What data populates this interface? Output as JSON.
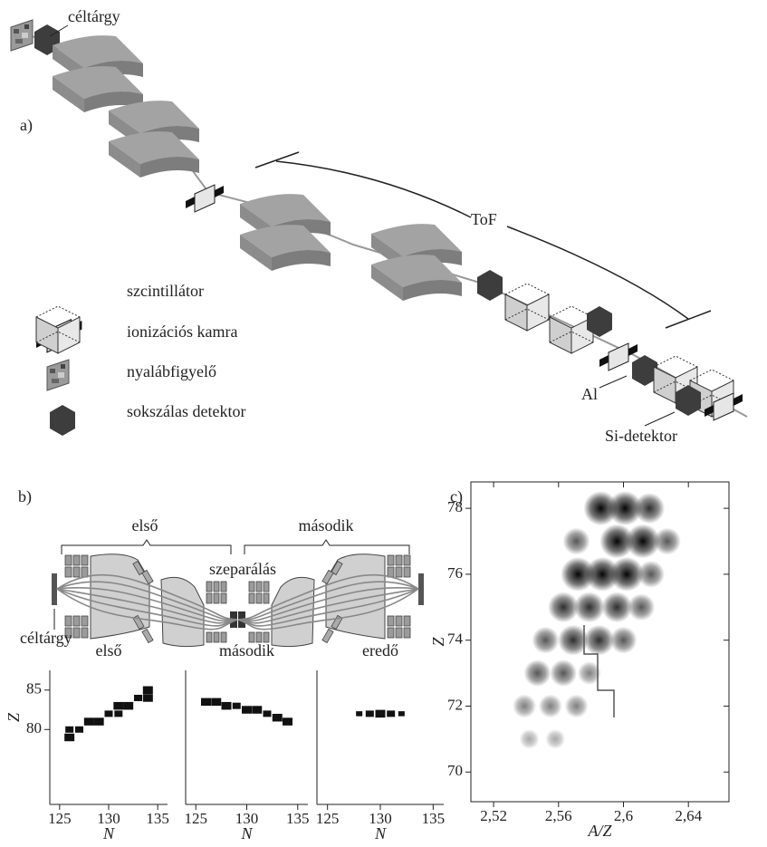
{
  "panel_a": {
    "label": "a)",
    "target": "céltárgy",
    "tof": "ToF",
    "al": "Al",
    "si": "Si-detektor",
    "legend": [
      "szcintillátor",
      "ionizációs kamra",
      "nyalábfigyelő",
      "sokszálas detektor"
    ]
  },
  "panel_b": {
    "label": "b)",
    "first": "első",
    "second": "második",
    "separation": "szeparálás",
    "target": "céltárgy"
  },
  "panel_c": {
    "label": "c)"
  },
  "chart_data": [
    {
      "type": "scatter",
      "marker": "square",
      "title": "első",
      "xlabel": "N",
      "ylabel": "Z",
      "x": [
        126,
        126,
        127,
        128,
        129,
        130,
        131,
        131,
        132,
        133,
        134,
        134
      ],
      "y": [
        79,
        80,
        80,
        81,
        81,
        82,
        82,
        83,
        83,
        84,
        84,
        85
      ],
      "sizes": [
        3,
        2,
        2,
        3,
        3,
        2,
        2,
        3,
        3,
        2,
        3,
        3
      ],
      "color": "#111111",
      "xlim": [
        124,
        136
      ],
      "xticks": [
        125,
        130,
        135
      ],
      "ylim": [
        70.5,
        87.5
      ],
      "yticks": [
        80,
        85
      ]
    },
    {
      "type": "scatter",
      "marker": "square",
      "title": "második",
      "xlabel": "N",
      "x": [
        126,
        127,
        128,
        129,
        130,
        131,
        132,
        133,
        134
      ],
      "y": [
        83.5,
        83.5,
        83,
        83,
        82.5,
        82.5,
        82,
        81.5,
        81
      ],
      "sizes": [
        3,
        3,
        3,
        2,
        3,
        3,
        2,
        3,
        3
      ],
      "color": "#111111",
      "xlim": [
        124,
        136
      ],
      "xticks": [
        125,
        130,
        135
      ],
      "ylim": [
        70.5,
        87.5
      ]
    },
    {
      "type": "scatter",
      "marker": "square",
      "title": "eredő",
      "xlabel": "N",
      "x": [
        128,
        129,
        130,
        131,
        132
      ],
      "y": [
        82,
        82,
        82,
        82,
        82
      ],
      "sizes": [
        1,
        2,
        3,
        2,
        1
      ],
      "color": "#111111",
      "xlim": [
        124,
        136
      ],
      "xticks": [
        125,
        130,
        135
      ],
      "ylim": [
        70.5,
        87.5
      ]
    },
    {
      "type": "scatter",
      "marker": "blob",
      "xlabel": "A/Z",
      "ylabel": "Z",
      "x": [
        2.586,
        2.601,
        2.616,
        2.571,
        2.596,
        2.612,
        2.627,
        2.572,
        2.587,
        2.602,
        2.617,
        2.563,
        2.579,
        2.596,
        2.611,
        2.552,
        2.569,
        2.585,
        2.6,
        2.547,
        2.563,
        2.579,
        2.539,
        2.555,
        2.571,
        2.542,
        2.558
      ],
      "y": [
        78,
        78,
        78,
        77,
        77,
        77,
        77,
        76,
        76,
        76,
        76,
        75,
        75,
        75,
        75,
        74,
        74,
        74,
        74,
        73,
        73,
        73,
        72,
        72,
        72,
        71,
        71
      ],
      "sizes": [
        5,
        5,
        4,
        3,
        5,
        5,
        3,
        5,
        5,
        5,
        3,
        4,
        4,
        4,
        3,
        3,
        4,
        4,
        3,
        3,
        3,
        2,
        2,
        2,
        2,
        1,
        1
      ],
      "color": "#111111",
      "xlim": [
        2.506,
        2.665
      ],
      "xticks": [
        {
          "value": 2.52,
          "label": "2,52"
        },
        {
          "value": 2.56,
          "label": "2,56"
        },
        {
          "value": 2.6,
          "label": "2,6"
        },
        {
          "value": 2.64,
          "label": "2,64"
        }
      ],
      "ylim": [
        69.1,
        78.8
      ],
      "yticks": [
        70,
        72,
        74,
        76,
        78
      ]
    }
  ]
}
